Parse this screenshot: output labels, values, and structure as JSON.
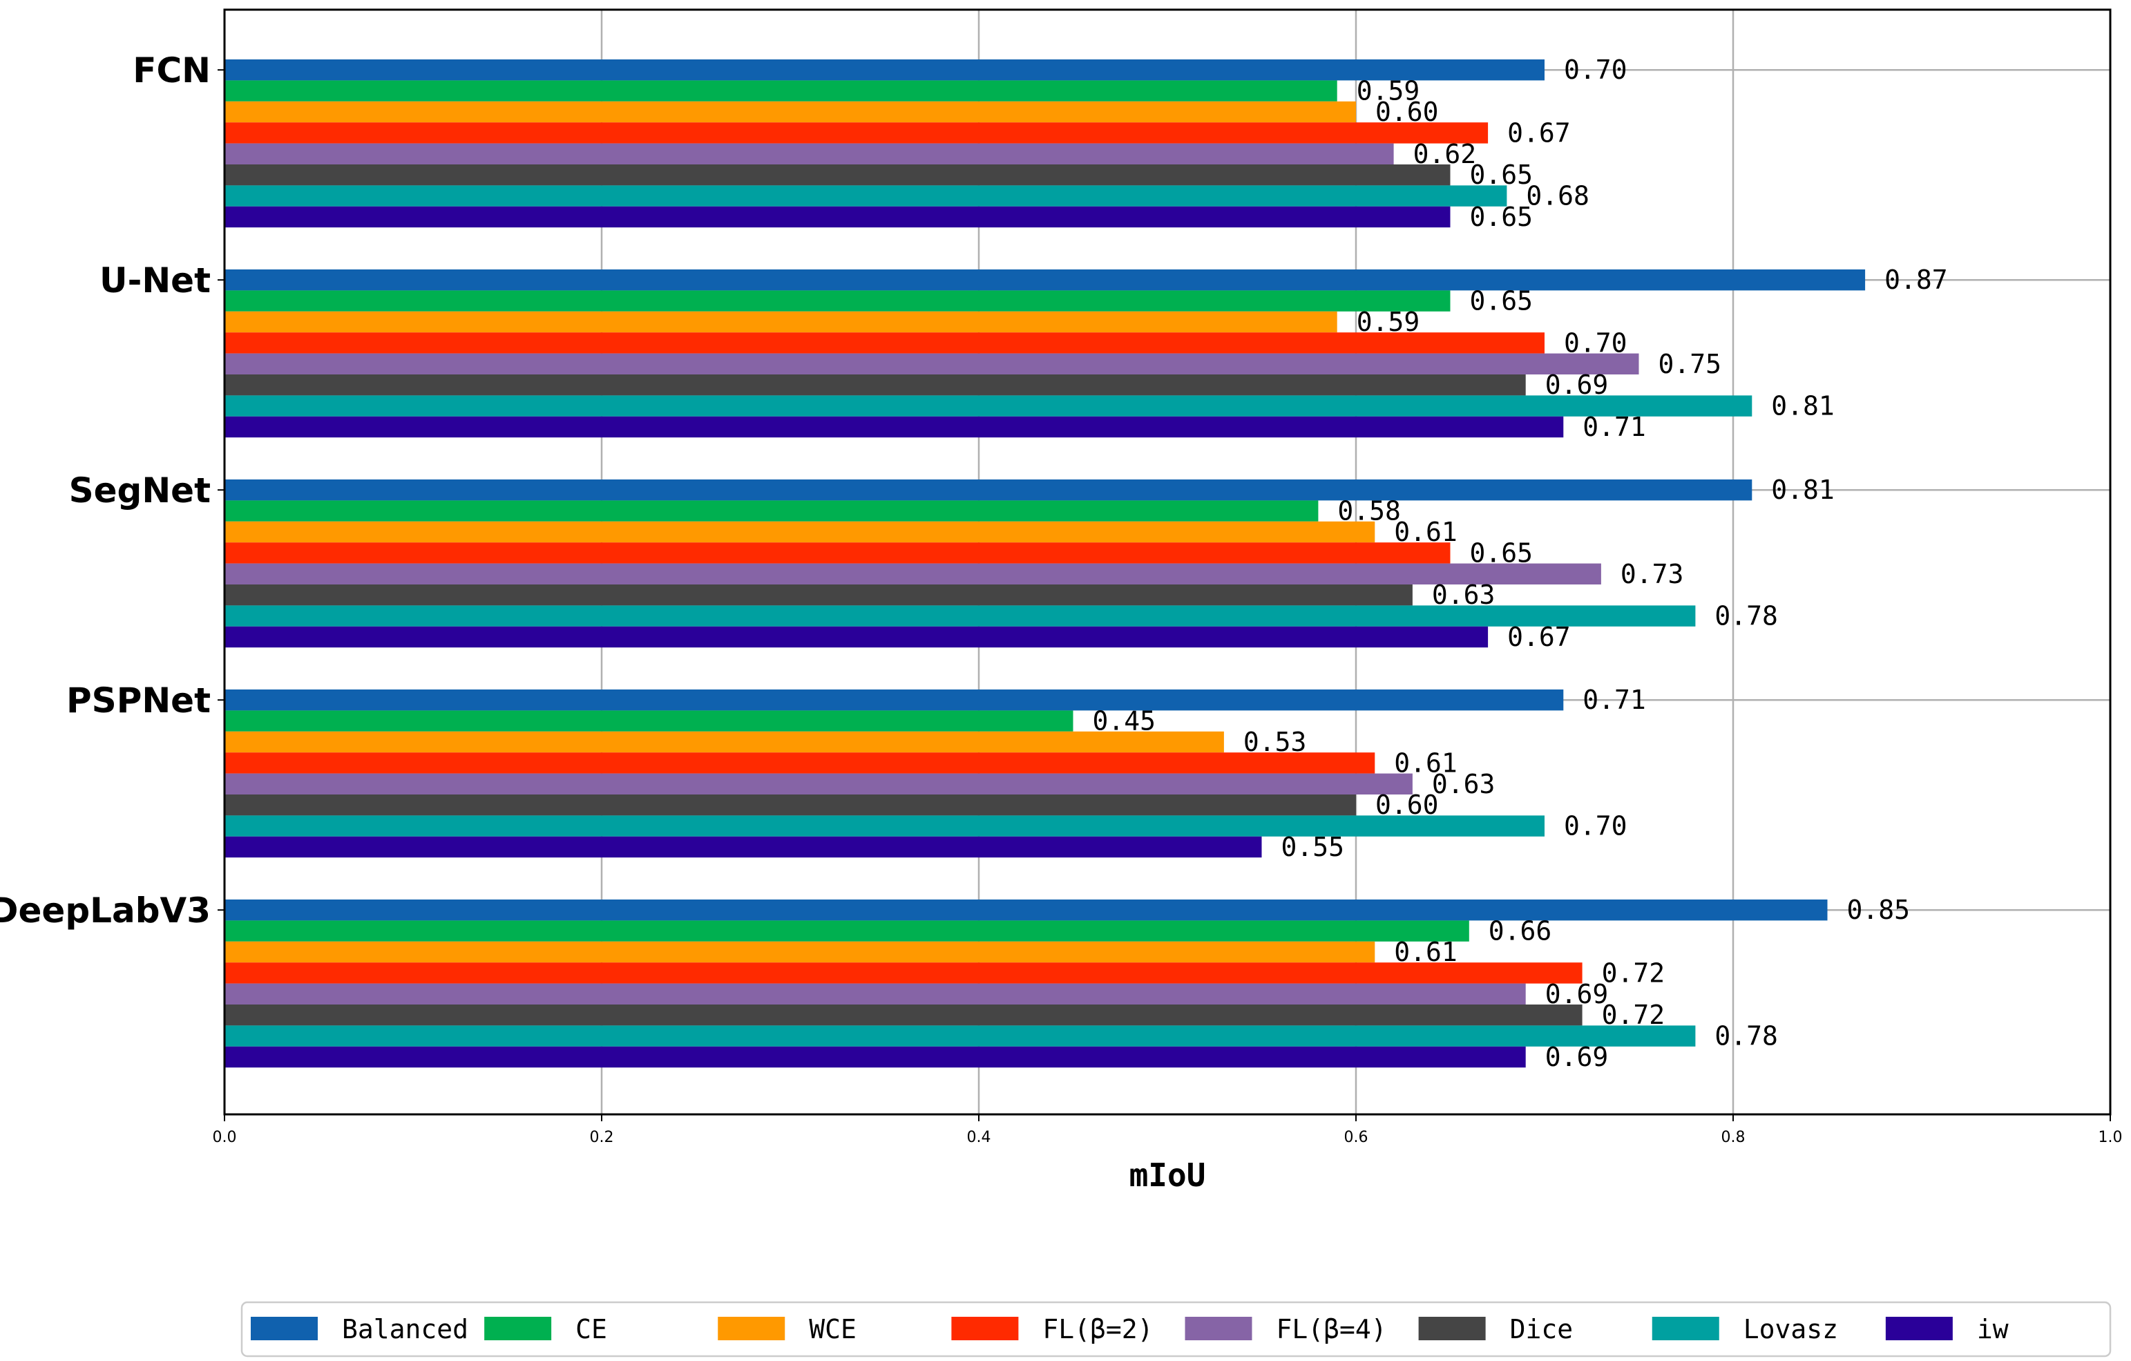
{
  "chart_data": {
    "type": "bar",
    "orientation": "horizontal",
    "xlabel": "mIoU",
    "ylabel": "",
    "xlim": [
      0,
      1.0
    ],
    "xticks": [
      "0.0",
      "0.2",
      "0.4",
      "0.6",
      "0.8",
      "1.0"
    ],
    "grid": true,
    "legend_position": "bottom",
    "categories": [
      "FCN",
      "U-Net",
      "SegNet",
      "PSPNet",
      "DeepLabV3"
    ],
    "series": [
      {
        "name": "Balanced Loss",
        "color": "#1061AE",
        "values": [
          0.7,
          0.87,
          0.81,
          0.71,
          0.85
        ],
        "labels": [
          "0.70",
          "0.87",
          "0.81",
          "0.71",
          "0.85"
        ]
      },
      {
        "name": "CE",
        "color": "#00B050",
        "values": [
          0.59,
          0.65,
          0.58,
          0.45,
          0.66
        ],
        "labels": [
          "0.59",
          "0.65",
          "0.58",
          "0.45",
          "0.66"
        ]
      },
      {
        "name": "WCE",
        "color": "#FF9900",
        "values": [
          0.6,
          0.59,
          0.61,
          0.53,
          0.61
        ],
        "labels": [
          "0.60",
          "0.59",
          "0.61",
          "0.53",
          "0.61"
        ]
      },
      {
        "name": "FL(β=2)",
        "color": "#FF2A00",
        "values": [
          0.67,
          0.7,
          0.65,
          0.61,
          0.72
        ],
        "labels": [
          "0.67",
          "0.70",
          "0.65",
          "0.61",
          "0.72"
        ]
      },
      {
        "name": "FL(β=4)",
        "color": "#8664A6",
        "values": [
          0.62,
          0.75,
          0.73,
          0.63,
          0.69
        ],
        "labels": [
          "0.62",
          "0.75",
          "0.73",
          "0.63",
          "0.69"
        ]
      },
      {
        "name": "Dice",
        "color": "#454545",
        "values": [
          0.65,
          0.69,
          0.63,
          0.6,
          0.72
        ],
        "labels": [
          "0.65",
          "0.69",
          "0.63",
          "0.60",
          "0.72"
        ]
      },
      {
        "name": "Lovasz",
        "color": "#00A0A0",
        "values": [
          0.68,
          0.81,
          0.78,
          0.7,
          0.78
        ],
        "labels": [
          "0.68",
          "0.81",
          "0.78",
          "0.70",
          "0.78"
        ]
      },
      {
        "name": "iw",
        "color": "#2A0099",
        "values": [
          0.65,
          0.71,
          0.67,
          0.55,
          0.69
        ],
        "labels": [
          "0.65",
          "0.71",
          "0.67",
          "0.55",
          "0.69"
        ]
      }
    ]
  }
}
